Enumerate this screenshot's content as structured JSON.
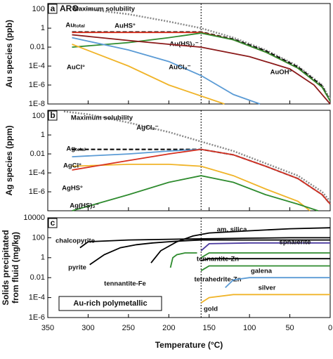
{
  "chart_data": [
    {
      "type": "line",
      "label": "a",
      "title": "ARC",
      "ylabel": [
        "Au species (ppb)"
      ],
      "log_y": true,
      "xlim": [
        350,
        0
      ],
      "xticks": [
        350,
        300,
        250,
        200,
        150,
        100,
        50,
        0
      ],
      "ylim": [
        1e-08,
        400
      ],
      "yticks": [
        100,
        1,
        0.01,
        {
          "value": 0.0001,
          "label": "1E-4"
        },
        {
          "value": 1e-06,
          "label": "1E-6"
        },
        {
          "value": 1e-08,
          "label": "1E-8"
        }
      ],
      "vline": 160,
      "series": [
        {
          "name": "Maximum solubility",
          "color": "#8a8a8a",
          "style": "dotted",
          "x": [
            320,
            250,
            200,
            160,
            120,
            80,
            40,
            10,
            0
          ],
          "values": [
            150,
            30,
            5,
            1,
            0.1,
            0.005,
            0.0001,
            1e-06,
            3e-08
          ]
        },
        {
          "name": "Auₜₒₜₐₗ",
          "color": "#000000",
          "style": "dashed",
          "x": [
            320,
            160,
            120,
            80,
            40,
            10,
            0
          ],
          "values": [
            0.4,
            0.4,
            0.07,
            0.004,
            8e-05,
            8e-07,
            2e-08
          ]
        },
        {
          "name": "AuHS°",
          "color": "#d7301f",
          "style": "solid",
          "x": [
            320,
            160,
            120,
            80,
            40,
            10,
            0
          ],
          "values": [
            0.35,
            0.35,
            0.06,
            0.003,
            6e-05,
            6e-07,
            2e-08
          ]
        },
        {
          "name": "Au(HS)₂⁻",
          "color": "#2e8b2e",
          "style": "solid",
          "x": [
            320,
            250,
            200,
            160,
            120,
            80,
            40,
            10,
            0
          ],
          "values": [
            0.01,
            0.03,
            0.1,
            0.3,
            0.06,
            0.003,
            6e-05,
            6e-07,
            2e-08
          ]
        },
        {
          "name": "AuCl₂⁻",
          "color": "#5b9bd5",
          "style": "solid",
          "x": [
            320,
            250,
            200,
            160,
            120,
            87
          ],
          "values": [
            0.1,
            0.005,
            0.0003,
            1e-05,
            1e-07,
            1e-08
          ]
        },
        {
          "name": "AuCl°",
          "color": "#f0b429",
          "style": "solid",
          "x": [
            320,
            250,
            200,
            131
          ],
          "values": [
            0.02,
            0.0001,
            1e-06,
            1e-08
          ]
        },
        {
          "name": "AuOH°",
          "color": "#8b1a1a",
          "style": "solid",
          "x": [
            320,
            250,
            200,
            160,
            100,
            50,
            20,
            0
          ],
          "values": [
            0.2,
            0.05,
            0.02,
            0.01,
            0.001,
            5e-05,
            1e-06,
            1e-08
          ]
        }
      ]
    },
    {
      "type": "line",
      "label": "b",
      "ylabel": [
        "Ag species (ppm)"
      ],
      "log_y": true,
      "xlim": [
        350,
        0
      ],
      "xticks": [
        350,
        300,
        250,
        200,
        150,
        100,
        50,
        0
      ],
      "ylim": [
        1e-08,
        400
      ],
      "yticks": [
        100,
        1,
        0.01,
        {
          "value": 0.0001,
          "label": "1E-4"
        },
        {
          "value": 1e-06,
          "label": "1E-6"
        }
      ],
      "vline": 160,
      "series": [
        {
          "name": "Maximum solubility",
          "color": "#8a8a8a",
          "style": "dotted",
          "x": [
            330,
            300,
            250,
            200,
            160,
            120,
            80,
            40,
            10,
            0
          ],
          "values": [
            300,
            150,
            20,
            2,
            0.2,
            0.02,
            0.001,
            5e-05,
            1e-06,
            1e-07
          ]
        },
        {
          "name": "Agₜₒₜₐₗ",
          "color": "#000000",
          "style": "dashed",
          "x": [
            320,
            160,
            120,
            80,
            40,
            10,
            0
          ],
          "values": [
            0.03,
            0.03,
            0.008,
            0.0005,
            2.5e-05,
            5e-07,
            5e-08
          ]
        },
        {
          "name": "AgCl₂⁻",
          "color": "#5b9bd5",
          "style": "solid",
          "x": [
            320,
            250,
            200,
            160,
            120,
            80,
            40,
            10,
            0
          ],
          "values": [
            0.005,
            0.01,
            0.02,
            0.03,
            0.008,
            0.0005,
            2.5e-05,
            5e-07,
            5e-08
          ]
        },
        {
          "name": "AgCl°",
          "color": "#f0b429",
          "style": "solid",
          "x": [
            320,
            250,
            200,
            160,
            120,
            80,
            40,
            25
          ],
          "values": [
            0.0005,
            0.0008,
            0.0008,
            0.0005,
            5e-05,
            2e-06,
            1e-07,
            1e-08
          ]
        },
        {
          "name": "AgHS°",
          "color": "#d7301f",
          "style": "solid",
          "x": [
            320,
            250,
            200,
            160,
            120,
            80,
            40,
            10,
            0
          ],
          "values": [
            0.0002,
            0.002,
            0.01,
            0.03,
            0.008,
            0.0005,
            2.5e-05,
            5e-07,
            5e-08
          ]
        },
        {
          "name": "Ag(HS)₂⁻",
          "color": "#2e8b2e",
          "style": "solid",
          "x": [
            320,
            250,
            200,
            160,
            120,
            80,
            40,
            15
          ],
          "values": [
            1e-08,
            5e-07,
            1e-05,
            5e-05,
            1e-05,
            5e-07,
            5e-08,
            1e-08
          ]
        }
      ]
    },
    {
      "type": "line",
      "label": "c",
      "ylabel": [
        "Solids precipitated",
        "from fluid (mg/kg)"
      ],
      "xlabel": "Temperature (°C)",
      "annotation": "Au-rich polymetallic",
      "log_y": true,
      "xlim": [
        350,
        0
      ],
      "xticks": [
        350,
        300,
        250,
        200,
        150,
        100,
        50,
        0
      ],
      "ylim": [
        1e-06,
        10000
      ],
      "yticks": [
        10000,
        100,
        1,
        0.01,
        {
          "value": 0.0001,
          "label": "1E-4"
        },
        {
          "value": 1e-06,
          "label": "1E-6"
        }
      ],
      "vline": 160,
      "series": [
        {
          "name": "chalcopyrite",
          "color": "#000000",
          "style": "solid",
          "x": [
            310,
            300,
            250,
            200,
            150,
            100,
            50,
            0
          ],
          "values": [
            10,
            40,
            60,
            70,
            80,
            90,
            100,
            100
          ]
        },
        {
          "name": "pyrite",
          "color": "#000000",
          "style": "solid",
          "x": [
            298,
            280,
            260,
            240,
            220,
            200,
            180,
            160,
            0
          ],
          "values": [
            0.2,
            2,
            10,
            20,
            30,
            40,
            50,
            60,
            60
          ]
        },
        {
          "name": "am. silica",
          "color": "#000000",
          "style": "solid",
          "x": [
            222,
            210,
            190,
            170,
            150,
            100,
            50,
            0
          ],
          "values": [
            0.3,
            5,
            40,
            150,
            300,
            500,
            800,
            1000
          ]
        },
        {
          "name": "sphalerite",
          "color": "#4b3a9e",
          "style": "solid",
          "x": [
            160,
            150,
            100,
            50,
            0
          ],
          "values": [
            5,
            25,
            30,
            30,
            30
          ]
        },
        {
          "name": "tennantite-Zn",
          "color": "#2e8b2e",
          "style": "solid",
          "x": [
            160,
            150,
            0
          ],
          "values": [
            1,
            3,
            3
          ]
        },
        {
          "name": "tennantite-Fe",
          "color": "#2e8b2e",
          "style": "solid",
          "x": [
            198,
            195,
            190,
            180,
            165
          ],
          "values": [
            0.1,
            1,
            2,
            3,
            3
          ]
        },
        {
          "name": "galena",
          "color": "#000000",
          "style": "solid",
          "x": [
            160,
            150,
            0
          ],
          "values": [
            0.5,
            0.8,
            0.8
          ]
        },
        {
          "name": "tetrahedrite-Zn",
          "color": "#2e8b2e",
          "style": "solid",
          "x": [
            160,
            150,
            0
          ],
          "values": [
            0.05,
            0.15,
            0.15
          ]
        },
        {
          "name": "silver",
          "color": "#5b9bd5",
          "style": "solid",
          "x": [
            130,
            120,
            100,
            0
          ],
          "values": [
            0.001,
            0.006,
            0.01,
            0.01
          ]
        },
        {
          "name": "gold",
          "color": "#f0b429",
          "style": "solid",
          "x": [
            160,
            150,
            120,
            0
          ],
          "values": [
            3e-05,
            0.0001,
            0.0002,
            0.0002
          ]
        }
      ]
    }
  ]
}
